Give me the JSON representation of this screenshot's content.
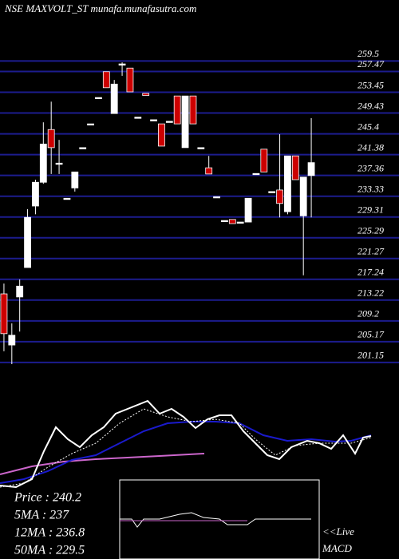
{
  "chart_data": {
    "type": "candlestick",
    "title": "NSE MAXVOLT_ST munafa.munafasutra.com",
    "categories": [
      null,
      null,
      null,
      null,
      null,
      null,
      null,
      null,
      null,
      null,
      null,
      null,
      null,
      null,
      null,
      null,
      null,
      null,
      null,
      null,
      null,
      null,
      null,
      null,
      null,
      null,
      null,
      null,
      null,
      null,
      null,
      null,
      null,
      null,
      null,
      null,
      null,
      null,
      null,
      null
    ],
    "open": [
      213.5,
      203.6,
      212.9,
      218.6,
      230.5,
      235.1,
      245.3,
      238.6,
      232.0,
      234.0,
      241.8,
      246.4,
      251.5,
      256.5,
      248.4,
      258.0,
      257.2,
      247.7,
      252.3,
      247.2,
      246.4,
      246.9,
      251.8,
      241.8,
      251.8,
      241.8,
      237.9,
      232.3,
      227.7,
      227.9,
      227.4,
      227.4,
      236.8,
      241.5,
      233.3,
      233.6,
      229.4,
      240.2,
      228.6,
      236.4
    ],
    "high": [
      215.5,
      207.8,
      216.3,
      229.9,
      235.6,
      246.7,
      250.7,
      243.3,
      232.0,
      237.1,
      241.8,
      246.4,
      251.5,
      256.5,
      254.9,
      258.3,
      257.2,
      247.7,
      252.3,
      247.2,
      246.4,
      246.9,
      251.8,
      251.8,
      251.8,
      241.8,
      240.2,
      232.3,
      227.7,
      227.9,
      227.4,
      232.0,
      236.8,
      241.5,
      233.3,
      244.4,
      240.2,
      240.2,
      236.1,
      247.5
    ],
    "low": [
      202.4,
      199.9,
      206.2,
      218.6,
      228.9,
      234.8,
      236.7,
      236.7,
      232.0,
      233.3,
      241.8,
      246.4,
      251.5,
      253.4,
      248.4,
      255.7,
      252.6,
      247.7,
      251.9,
      247.2,
      242.1,
      246.9,
      246.4,
      241.8,
      246.4,
      241.8,
      236.7,
      232.3,
      227.7,
      227.1,
      227.4,
      227.4,
      236.8,
      237.1,
      233.3,
      228.3,
      228.9,
      235.6,
      217.1,
      228.3
    ],
    "close": [
      205.8,
      205.5,
      215.0,
      228.3,
      235.1,
      242.5,
      241.8,
      238.8,
      232.0,
      237.1,
      241.8,
      246.4,
      251.5,
      253.4,
      254.1,
      258.0,
      252.6,
      247.7,
      251.9,
      247.2,
      242.1,
      246.9,
      246.4,
      251.8,
      246.4,
      241.8,
      236.7,
      232.3,
      227.7,
      227.1,
      227.4,
      232.0,
      236.8,
      237.1,
      233.3,
      231.0,
      240.2,
      235.6,
      236.1,
      238.9
    ],
    "up_color": "#ffffff",
    "down_color": "#cc0000",
    "grid_color": "#1c1c8e",
    "ylim": [
      199.9,
      261.1
    ],
    "yticks": [
      259.5,
      257.47,
      253.45,
      249.43,
      245.4,
      241.38,
      237.36,
      233.33,
      229.31,
      225.29,
      221.27,
      217.24,
      213.22,
      209.2,
      205.17,
      201.15
    ],
    "grid": true,
    "annotations": [
      "Price  : 240.2",
      "5MA : 237",
      "12MA : 236.8",
      "50MA : 229.5",
      "<<Live",
      "MACD"
    ]
  }
}
